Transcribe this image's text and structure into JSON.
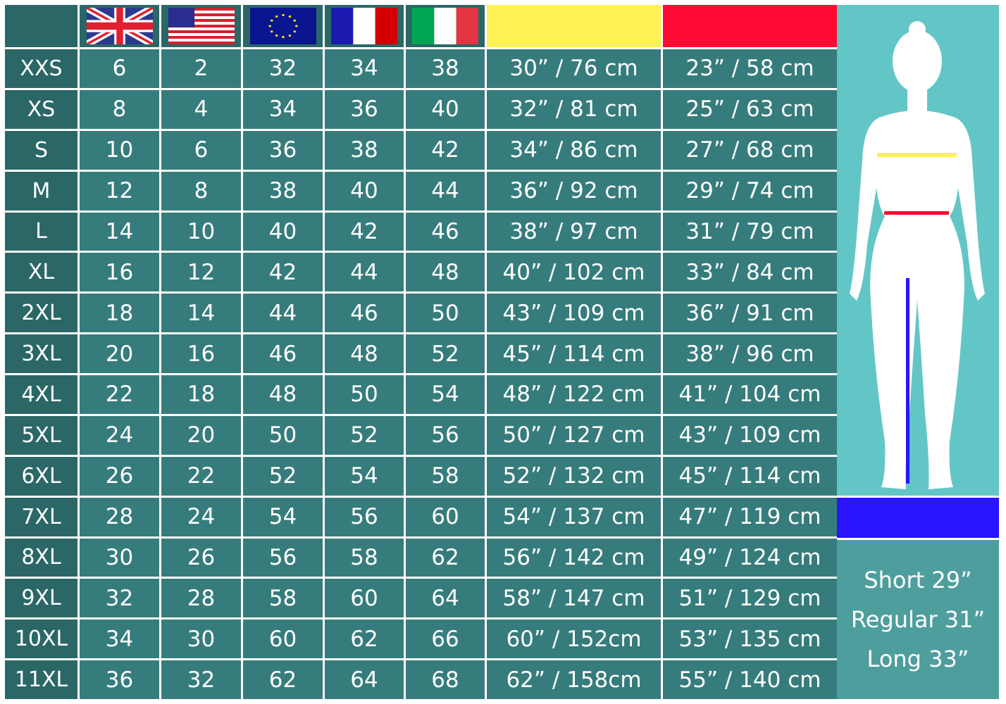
{
  "header": {
    "flags": [
      "uk-flag",
      "us-flag",
      "eu-flag",
      "france-flag",
      "italy-flag"
    ],
    "measure_colors": {
      "bust": "#fff156",
      "waist": "#ff0a33",
      "inseam": "#2a14ff"
    }
  },
  "rows": [
    {
      "size": "XXS",
      "uk": "6",
      "us": "2",
      "eu": "32",
      "fr": "34",
      "it": "38",
      "bust": "30” / 76 cm",
      "waist": "23” / 58 cm"
    },
    {
      "size": "XS",
      "uk": "8",
      "us": "4",
      "eu": "34",
      "fr": "36",
      "it": "40",
      "bust": "32” / 81 cm",
      "waist": "25” / 63 cm"
    },
    {
      "size": "S",
      "uk": "10",
      "us": "6",
      "eu": "36",
      "fr": "38",
      "it": "42",
      "bust": "34” / 86 cm",
      "waist": "27” / 68 cm"
    },
    {
      "size": "M",
      "uk": "12",
      "us": "8",
      "eu": "38",
      "fr": "40",
      "it": "44",
      "bust": "36” / 92 cm",
      "waist": "29” / 74 cm"
    },
    {
      "size": "L",
      "uk": "14",
      "us": "10",
      "eu": "40",
      "fr": "42",
      "it": "46",
      "bust": "38” / 97 cm",
      "waist": "31” / 79 cm"
    },
    {
      "size": "XL",
      "uk": "16",
      "us": "12",
      "eu": "42",
      "fr": "44",
      "it": "48",
      "bust": "40” / 102 cm",
      "waist": "33” / 84 cm"
    },
    {
      "size": "2XL",
      "uk": "18",
      "us": "14",
      "eu": "44",
      "fr": "46",
      "it": "50",
      "bust": "43” / 109 cm",
      "waist": "36” / 91 cm"
    },
    {
      "size": "3XL",
      "uk": "20",
      "us": "16",
      "eu": "46",
      "fr": "48",
      "it": "52",
      "bust": "45” / 114 cm",
      "waist": "38” / 96 cm"
    },
    {
      "size": "4XL",
      "uk": "22",
      "us": "18",
      "eu": "48",
      "fr": "50",
      "it": "54",
      "bust": "48” / 122 cm",
      "waist": "41” / 104 cm"
    },
    {
      "size": "5XL",
      "uk": "24",
      "us": "20",
      "eu": "50",
      "fr": "52",
      "it": "56",
      "bust": "50” / 127 cm",
      "waist": "43” / 109 cm"
    },
    {
      "size": "6XL",
      "uk": "26",
      "us": "22",
      "eu": "52",
      "fr": "54",
      "it": "58",
      "bust": "52” / 132 cm",
      "waist": "45” / 114 cm"
    },
    {
      "size": "7XL",
      "uk": "28",
      "us": "24",
      "eu": "54",
      "fr": "56",
      "it": "60",
      "bust": "54” / 137 cm",
      "waist": "47” / 119 cm"
    },
    {
      "size": "8XL",
      "uk": "30",
      "us": "26",
      "eu": "56",
      "fr": "58",
      "it": "62",
      "bust": "56” / 142 cm",
      "waist": "49” / 124 cm"
    },
    {
      "size": "9XL",
      "uk": "32",
      "us": "28",
      "eu": "58",
      "fr": "60",
      "it": "64",
      "bust": "58” / 147 cm",
      "waist": "51” / 129 cm"
    },
    {
      "size": "10XL",
      "uk": "34",
      "us": "30",
      "eu": "60",
      "fr": "62",
      "it": "66",
      "bust": "60” / 152cm",
      "waist": "53” / 135 cm"
    },
    {
      "size": "11XL",
      "uk": "36",
      "us": "32",
      "eu": "62",
      "fr": "64",
      "it": "68",
      "bust": "62” / 158cm",
      "waist": "55” / 140 cm"
    }
  ],
  "inseam": {
    "short": "Short 29”",
    "regular": "Regular 31”",
    "long": "Long 33”"
  }
}
